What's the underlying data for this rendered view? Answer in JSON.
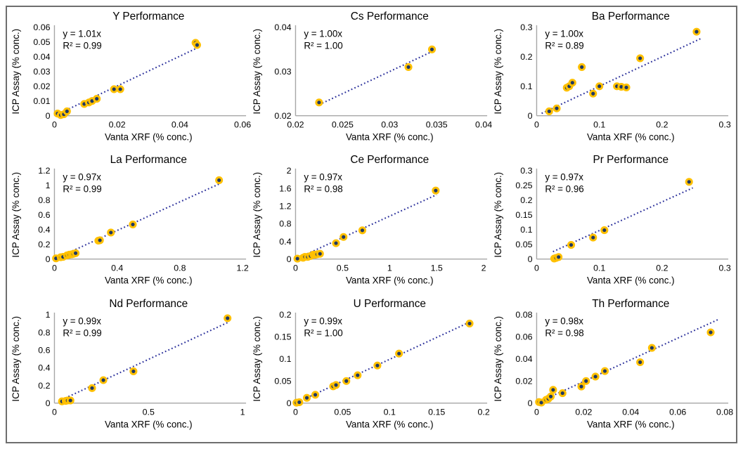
{
  "figure": {
    "background": "#ffffff",
    "border_color": "#6e6e6e"
  },
  "colors": {
    "marker_fill": "#1F3864",
    "marker_ring": "#FFC000",
    "trendline": "#2B309B",
    "axis_line": "#A6A6A6",
    "text": "#000000"
  },
  "chart_data": [
    {
      "type": "scatter",
      "element": "Y",
      "title": "Y Performance",
      "equation": "y = 1.01x",
      "r_squared": "R² = 0.99",
      "slope": 1.01,
      "xlabel": "Vanta XRF (% conc.)",
      "ylabel": "ICP Assay (% conc.)",
      "xlim": [
        0,
        0.06
      ],
      "ylim": [
        0,
        0.06
      ],
      "xtick_values": [
        0,
        0.02,
        0.04,
        0.06
      ],
      "xtick_labels": [
        "0",
        "0.02",
        "0.04",
        "0.06"
      ],
      "ytick_values": [
        0,
        0.01,
        0.02,
        0.03,
        0.04,
        0.05,
        0.06
      ],
      "ytick_labels": [
        "0",
        "0.01",
        "0.02",
        "0.03",
        "0.04",
        "0.05",
        "0.06"
      ],
      "trend_x_range": [
        0.0005,
        0.046
      ],
      "points": [
        [
          0.001,
          0.0015
        ],
        [
          0.002,
          0.0005
        ],
        [
          0.003,
          0.001
        ],
        [
          0.004,
          0.003
        ],
        [
          0.0095,
          0.008
        ],
        [
          0.011,
          0.009
        ],
        [
          0.012,
          0.01
        ],
        [
          0.0135,
          0.0115
        ],
        [
          0.019,
          0.018
        ],
        [
          0.021,
          0.018
        ],
        [
          0.045,
          0.0495
        ],
        [
          0.0455,
          0.048
        ]
      ]
    },
    {
      "type": "scatter",
      "element": "Cs",
      "title": "Cs Performance",
      "equation": "y = 1.00x",
      "r_squared": "R² = 1.00",
      "slope": 1.0,
      "xlabel": "Vanta XRF (% conc.)",
      "ylabel": "ICP Assay (% conc.)",
      "xlim": [
        0.02,
        0.04
      ],
      "ylim": [
        0.02,
        0.04
      ],
      "xtick_values": [
        0.02,
        0.025,
        0.03,
        0.035,
        0.04
      ],
      "xtick_labels": [
        "0.02",
        "0.025",
        "0.03",
        "0.035",
        "0.04"
      ],
      "ytick_values": [
        0.02,
        0.03,
        0.04
      ],
      "ytick_labels": [
        "0.02",
        "0.03",
        "0.04"
      ],
      "trend_x_range": [
        0.0225,
        0.0345
      ],
      "points": [
        [
          0.0225,
          0.023
        ],
        [
          0.032,
          0.031
        ],
        [
          0.0345,
          0.035
        ]
      ]
    },
    {
      "type": "scatter",
      "element": "Ba",
      "title": "Ba Performance",
      "equation": "y = 1.00x",
      "r_squared": "R² = 0.89",
      "slope": 1.0,
      "xlabel": "Vanta XRF (% conc.)",
      "ylabel": "ICP Assay (% conc.)",
      "xlim": [
        0,
        0.3
      ],
      "ylim": [
        0,
        0.3
      ],
      "xtick_values": [
        0,
        0.1,
        0.2,
        0.3
      ],
      "xtick_labels": [
        "0",
        "0.1",
        "0.2",
        "0.3"
      ],
      "ytick_values": [
        0,
        0.1,
        0.2,
        0.3
      ],
      "ytick_labels": [
        "0",
        "0.1",
        "0.2",
        "0.3"
      ],
      "trend_x_range": [
        0.008,
        0.262
      ],
      "points": [
        [
          0.02,
          0.015
        ],
        [
          0.032,
          0.025
        ],
        [
          0.048,
          0.095
        ],
        [
          0.052,
          0.1
        ],
        [
          0.057,
          0.112
        ],
        [
          0.072,
          0.165
        ],
        [
          0.09,
          0.075
        ],
        [
          0.1,
          0.1
        ],
        [
          0.128,
          0.1
        ],
        [
          0.135,
          0.098
        ],
        [
          0.143,
          0.096
        ],
        [
          0.165,
          0.195
        ],
        [
          0.255,
          0.285
        ]
      ]
    },
    {
      "type": "scatter",
      "element": "La",
      "title": "La Performance",
      "equation": "y = 0.97x",
      "r_squared": "R² = 0.99",
      "slope": 0.97,
      "xlabel": "Vanta XRF (% conc.)",
      "ylabel": "ICP Assay (% conc.)",
      "xlim": [
        0,
        1.2
      ],
      "ylim": [
        0,
        1.2
      ],
      "xtick_values": [
        0,
        0.4,
        0.8,
        1.2
      ],
      "xtick_labels": [
        "0",
        "0.4",
        "0.8",
        "1.2"
      ],
      "ytick_values": [
        0,
        0.2,
        0.4,
        0.6,
        0.8,
        1,
        1.2
      ],
      "ytick_labels": [
        "0",
        "0.2",
        "0.4",
        "0.6",
        "0.8",
        "1",
        "1.2"
      ],
      "trend_x_range": [
        0.01,
        1.06
      ],
      "points": [
        [
          0.01,
          0.01
        ],
        [
          0.04,
          0.025
        ],
        [
          0.055,
          0.03
        ],
        [
          0.08,
          0.05
        ],
        [
          0.095,
          0.06
        ],
        [
          0.11,
          0.065
        ],
        [
          0.12,
          0.07
        ],
        [
          0.135,
          0.08
        ],
        [
          0.28,
          0.25
        ],
        [
          0.29,
          0.255
        ],
        [
          0.36,
          0.36
        ],
        [
          0.5,
          0.47
        ],
        [
          1.05,
          1.07
        ]
      ]
    },
    {
      "type": "scatter",
      "element": "Ce",
      "title": "Ce Performance",
      "equation": "y = 0.97x",
      "r_squared": "R² = 0.98",
      "slope": 0.97,
      "xlabel": "Vanta XRF (% conc.)",
      "ylabel": "ICP Assay (% conc.)",
      "xlim": [
        0,
        2
      ],
      "ylim": [
        0,
        2
      ],
      "xtick_values": [
        0,
        0.5,
        1,
        1.5,
        2
      ],
      "xtick_labels": [
        "0",
        "0.5",
        "1",
        "1.5",
        "2"
      ],
      "ytick_values": [
        0,
        0.4,
        0.8,
        1.2,
        1.6,
        2
      ],
      "ytick_labels": [
        "0",
        "0.4",
        "0.8",
        "1.2",
        "1.6",
        "2"
      ],
      "trend_x_range": [
        0.02,
        1.5
      ],
      "points": [
        [
          0.02,
          0.01
        ],
        [
          0.08,
          0.03
        ],
        [
          0.1,
          0.05
        ],
        [
          0.13,
          0.05
        ],
        [
          0.16,
          0.07
        ],
        [
          0.19,
          0.1
        ],
        [
          0.21,
          0.1
        ],
        [
          0.23,
          0.11
        ],
        [
          0.26,
          0.12
        ],
        [
          0.43,
          0.36
        ],
        [
          0.51,
          0.5
        ],
        [
          0.71,
          0.65
        ],
        [
          1.49,
          1.55
        ]
      ]
    },
    {
      "type": "scatter",
      "element": "Pr",
      "title": "Pr Performance",
      "equation": "y = 0.97x",
      "r_squared": "R² = 0.96",
      "slope": 0.97,
      "xlabel": "Vanta XRF (% conc.)",
      "ylabel": "ICP Assay (% conc.)",
      "xlim": [
        0,
        0.3
      ],
      "ylim": [
        0,
        0.3
      ],
      "xtick_values": [
        0,
        0.1,
        0.2,
        0.3
      ],
      "xtick_labels": [
        "0",
        "0.1",
        "0.2",
        "0.3"
      ],
      "ytick_values": [
        0,
        0.05,
        0.1,
        0.15,
        0.2,
        0.25,
        0.3
      ],
      "ytick_labels": [
        "0",
        "0.05",
        "0.1",
        "0.15",
        "0.2",
        "0.25",
        "0.3"
      ],
      "trend_x_range": [
        0.026,
        0.249
      ],
      "points": [
        [
          0.028,
          0.002
        ],
        [
          0.031,
          0.004
        ],
        [
          0.035,
          0.007
        ],
        [
          0.055,
          0.048
        ],
        [
          0.09,
          0.073
        ],
        [
          0.108,
          0.098
        ],
        [
          0.243,
          0.262
        ]
      ]
    },
    {
      "type": "scatter",
      "element": "Nd",
      "title": "Nd Performance",
      "equation": "y = 0.99x",
      "r_squared": "R² = 0.99",
      "slope": 0.99,
      "xlabel": "Vanta XRF (% conc.)",
      "ylabel": "ICP Assay (% conc.)",
      "xlim": [
        0,
        1
      ],
      "ylim": [
        0,
        1
      ],
      "xtick_values": [
        0,
        0.5,
        1
      ],
      "xtick_labels": [
        "0",
        "0.5",
        "1"
      ],
      "ytick_values": [
        0,
        0.2,
        0.4,
        0.6,
        0.8,
        1
      ],
      "ytick_labels": [
        "0",
        "0.2",
        "0.4",
        "0.6",
        "0.8",
        "1"
      ],
      "trend_x_range": [
        0.04,
        0.93
      ],
      "points": [
        [
          0.04,
          0.02
        ],
        [
          0.06,
          0.025
        ],
        [
          0.07,
          0.03
        ],
        [
          0.085,
          0.03
        ],
        [
          0.2,
          0.17
        ],
        [
          0.26,
          0.26
        ],
        [
          0.42,
          0.36
        ],
        [
          0.92,
          0.96
        ]
      ]
    },
    {
      "type": "scatter",
      "element": "U",
      "title": "U Performance",
      "equation": "y = 0.99x",
      "r_squared": "R² = 1.00",
      "slope": 0.99,
      "xlabel": "Vanta XRF (% conc.)",
      "ylabel": "ICP Assay (% conc.)",
      "xlim": [
        0,
        0.2
      ],
      "ylim": [
        0,
        0.2
      ],
      "xtick_values": [
        0,
        0.05,
        0.1,
        0.15,
        0.2
      ],
      "xtick_labels": [
        "0",
        "0.05",
        "0.1",
        "0.15",
        "0.2"
      ],
      "ytick_values": [
        0,
        0.05,
        0.1,
        0.15,
        0.2
      ],
      "ytick_labels": [
        "0",
        "0.05",
        "0.1",
        "0.15",
        "0.2"
      ],
      "trend_x_range": [
        0.002,
        0.186
      ],
      "points": [
        [
          0.001,
          0.001
        ],
        [
          0.004,
          0.002
        ],
        [
          0.012,
          0.012
        ],
        [
          0.021,
          0.019
        ],
        [
          0.04,
          0.038
        ],
        [
          0.043,
          0.041
        ],
        [
          0.054,
          0.05
        ],
        [
          0.066,
          0.063
        ],
        [
          0.087,
          0.085
        ],
        [
          0.11,
          0.112
        ],
        [
          0.185,
          0.18
        ]
      ]
    },
    {
      "type": "scatter",
      "element": "Th",
      "title": "Th Performance",
      "equation": "y = 0.98x",
      "r_squared": "R² = 0.98",
      "slope": 0.98,
      "xlabel": "Vanta XRF (% conc.)",
      "ylabel": "ICP Assay (% conc.)",
      "xlim": [
        0,
        0.08
      ],
      "ylim": [
        0,
        0.08
      ],
      "xtick_values": [
        0,
        0.02,
        0.04,
        0.06,
        0.08
      ],
      "xtick_labels": [
        "0",
        "0.02",
        "0.04",
        "0.06",
        "0.08"
      ],
      "ytick_values": [
        0,
        0.02,
        0.04,
        0.06,
        0.08
      ],
      "ytick_labels": [
        "0",
        "0.02",
        "0.04",
        "0.06",
        "0.08"
      ],
      "trend_x_range": [
        0.001,
        0.077
      ],
      "points": [
        [
          0.001,
          0.001
        ],
        [
          0.002,
          0.0005
        ],
        [
          0.004,
          0.003
        ],
        [
          0.005,
          0.004
        ],
        [
          0.006,
          0.006
        ],
        [
          0.007,
          0.012
        ],
        [
          0.011,
          0.009
        ],
        [
          0.019,
          0.015
        ],
        [
          0.021,
          0.02
        ],
        [
          0.025,
          0.024
        ],
        [
          0.029,
          0.029
        ],
        [
          0.044,
          0.037
        ],
        [
          0.049,
          0.05
        ],
        [
          0.074,
          0.064
        ]
      ]
    }
  ]
}
